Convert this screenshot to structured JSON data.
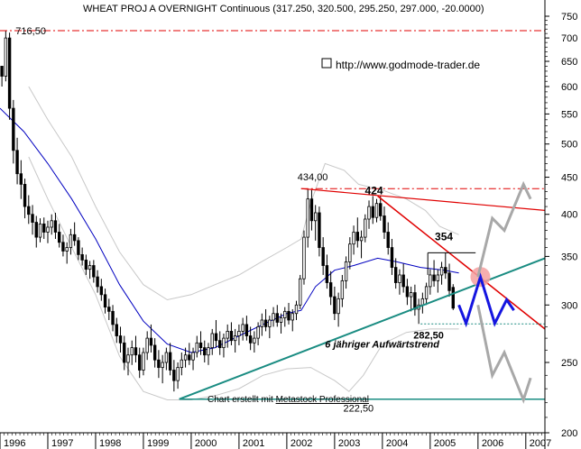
{
  "chart_data": {
    "type": "candlestick",
    "title": "WHEAT PROJ A OVERNIGHT Continuous (317.250, 320.500, 295.250, 297.000, -20.0000)",
    "watermark": "http://www.godmode-trader.de",
    "footer": {
      "prefix": "Chart erstellt mit ",
      "link": "Metastock Professional"
    },
    "y_axis": {
      "scale": "log",
      "range": [
        200,
        750
      ],
      "ticks": [
        750,
        700,
        650,
        600,
        550,
        500,
        450,
        400,
        350,
        300,
        250,
        200
      ],
      "side": "right"
    },
    "x_axis": {
      "range": [
        1996,
        2007.4
      ],
      "ticks": [
        "1996",
        "1997",
        "1998",
        "1999",
        "2000",
        "2001",
        "2002",
        "2003",
        "2004",
        "2005",
        "2006",
        "2007"
      ]
    },
    "annotations": [
      {
        "text": "716,50",
        "x": 1996.1,
        "y": 716.5
      },
      {
        "text": "434,00",
        "x": 2002.3,
        "y": 434
      },
      {
        "text": "424",
        "x": 2003.9,
        "y": 424
      },
      {
        "text": "354",
        "x": 2005.4,
        "y": 354
      },
      {
        "text": "282,50",
        "x": 2004.8,
        "y": 282.5
      },
      {
        "text": "222,50",
        "x": 2003.5,
        "y": 222.5
      },
      {
        "text": "6 jähriger Aufwärtstrend",
        "x": 2002.8,
        "y": 262
      }
    ],
    "lines": [
      {
        "name": "uptrend",
        "color": "#1a8c82",
        "points": [
          [
            1999.75,
            222.5
          ],
          [
            2007.4,
            348
          ]
        ]
      },
      {
        "name": "downtrend-steep",
        "color": "#e00000",
        "points": [
          [
            2003.9,
            424
          ],
          [
            2007.4,
            278
          ]
        ]
      },
      {
        "name": "resistance-top",
        "color": "#e00000",
        "points": [
          [
            2002.3,
            434
          ],
          [
            2007.4,
            405
          ]
        ]
      },
      {
        "name": "high-dashdot-716",
        "color": "#e00000",
        "points": [
          [
            1996,
            716.5
          ],
          [
            2007.4,
            716.5
          ]
        ]
      },
      {
        "name": "high-dashdot-434",
        "color": "#e00000",
        "points": [
          [
            2002.3,
            434
          ],
          [
            2007.4,
            434
          ]
        ]
      },
      {
        "name": "support-222",
        "color": "#1a8c82",
        "points": [
          [
            1999.75,
            222.5
          ],
          [
            2007.4,
            222.5
          ]
        ]
      },
      {
        "name": "dotted-282",
        "color": "#1a8c82",
        "points": [
          [
            2004.8,
            282.5
          ],
          [
            2007.4,
            282.5
          ]
        ]
      },
      {
        "name": "bracket-354",
        "color": "#000000",
        "points": [
          [
            2004.95,
            354
          ],
          [
            2005.95,
            354
          ]
        ]
      }
    ],
    "projections": [
      {
        "name": "projection-blue",
        "color": "#1515e0",
        "points": [
          [
            2005.6,
            300
          ],
          [
            2005.75,
            283
          ],
          [
            2006.05,
            328
          ],
          [
            2006.35,
            283
          ],
          [
            2006.6,
            305
          ],
          [
            2006.75,
            295
          ]
        ]
      },
      {
        "name": "projection-gray-up",
        "color": "#a8a8a8",
        "points": [
          [
            2006.0,
            328
          ],
          [
            2006.3,
            395
          ],
          [
            2006.55,
            380
          ],
          [
            2006.95,
            440
          ],
          [
            2007.1,
            420
          ]
        ]
      },
      {
        "name": "projection-gray-down",
        "color": "#a8a8a8",
        "points": [
          [
            2006.0,
            300
          ],
          [
            2006.3,
            240
          ],
          [
            2006.55,
            258
          ],
          [
            2006.95,
            222
          ],
          [
            2007.1,
            238
          ]
        ]
      }
    ],
    "highlight": {
      "name": "crossing-circle",
      "x": 2006.05,
      "y": 328,
      "color": "#f4a0a0"
    },
    "ma": {
      "name": "moving-average",
      "color": "#0000c0",
      "points": [
        [
          1996,
          560
        ],
        [
          1996.5,
          520
        ],
        [
          1997,
          470
        ],
        [
          1997.5,
          420
        ],
        [
          1998,
          370
        ],
        [
          1998.5,
          320
        ],
        [
          1999,
          285
        ],
        [
          1999.5,
          265
        ],
        [
          2000,
          258
        ],
        [
          2000.5,
          262
        ],
        [
          2001,
          272
        ],
        [
          2001.5,
          282
        ],
        [
          2002,
          292
        ],
        [
          2002.3,
          295
        ],
        [
          2002.6,
          318
        ],
        [
          2003,
          335
        ],
        [
          2003.4,
          340
        ],
        [
          2003.9,
          348
        ],
        [
          2004.3,
          344
        ],
        [
          2004.8,
          338
        ],
        [
          2005.3,
          335
        ],
        [
          2005.6,
          332
        ]
      ]
    },
    "band_upper": {
      "name": "band-upper",
      "color": "#c8c8c8",
      "points": [
        [
          1996.6,
          600
        ],
        [
          1997,
          540
        ],
        [
          1997.5,
          480
        ],
        [
          1998,
          410
        ],
        [
          1998.5,
          355
        ],
        [
          1999,
          320
        ],
        [
          1999.5,
          305
        ],
        [
          2000,
          310
        ],
        [
          2000.5,
          320
        ],
        [
          2001,
          330
        ],
        [
          2001.5,
          345
        ],
        [
          2002,
          360
        ],
        [
          2002.3,
          370
        ],
        [
          2002.5,
          415
        ],
        [
          2002.8,
          470
        ],
        [
          2003.2,
          460
        ],
        [
          2003.5,
          440
        ],
        [
          2004,
          432
        ],
        [
          2004.5,
          420
        ],
        [
          2004.9,
          405
        ],
        [
          2005.2,
          385
        ],
        [
          2005.6,
          375
        ]
      ]
    },
    "band_lower": {
      "name": "band-lower",
      "color": "#c8c8c8",
      "points": [
        [
          1996.6,
          480
        ],
        [
          1997,
          420
        ],
        [
          1997.5,
          360
        ],
        [
          1998,
          310
        ],
        [
          1998.5,
          255
        ],
        [
          1999,
          228
        ],
        [
          1999.5,
          222
        ],
        [
          2000,
          222
        ],
        [
          2000.5,
          225
        ],
        [
          2001,
          230
        ],
        [
          2001.5,
          240
        ],
        [
          2002,
          245
        ],
        [
          2002.5,
          246
        ],
        [
          2003,
          236
        ],
        [
          2003.3,
          228
        ],
        [
          2003.6,
          240
        ],
        [
          2004,
          265
        ],
        [
          2004.5,
          275
        ],
        [
          2005,
          278
        ],
        [
          2005.6,
          278
        ]
      ]
    },
    "candles": [
      [
        1996.04,
        640,
        640,
        600,
        620
      ],
      [
        1996.12,
        620,
        716.5,
        610,
        700
      ],
      [
        1996.2,
        700,
        712,
        540,
        560
      ],
      [
        1996.28,
        560,
        575,
        470,
        490
      ],
      [
        1996.36,
        490,
        510,
        440,
        455
      ],
      [
        1996.44,
        455,
        475,
        420,
        440
      ],
      [
        1996.52,
        440,
        448,
        395,
        410
      ],
      [
        1996.6,
        410,
        425,
        388,
        400
      ],
      [
        1996.68,
        400,
        412,
        375,
        390
      ],
      [
        1996.76,
        390,
        398,
        360,
        372
      ],
      [
        1996.84,
        372,
        395,
        366,
        388
      ],
      [
        1996.92,
        388,
        396,
        370,
        378
      ],
      [
        1997.0,
        378,
        392,
        365,
        384
      ],
      [
        1997.08,
        384,
        400,
        375,
        392
      ],
      [
        1997.16,
        392,
        402,
        370,
        378
      ],
      [
        1997.24,
        378,
        388,
        360,
        366
      ],
      [
        1997.32,
        366,
        375,
        350,
        356
      ],
      [
        1997.4,
        356,
        366,
        342,
        360
      ],
      [
        1997.48,
        360,
        382,
        352,
        375
      ],
      [
        1997.56,
        375,
        390,
        362,
        368
      ],
      [
        1997.64,
        368,
        372,
        346,
        352
      ],
      [
        1997.72,
        352,
        360,
        340,
        346
      ],
      [
        1997.8,
        346,
        352,
        330,
        336
      ],
      [
        1997.88,
        336,
        345,
        326,
        340
      ],
      [
        1997.96,
        340,
        346,
        322,
        328
      ],
      [
        1998.04,
        328,
        335,
        312,
        318
      ],
      [
        1998.12,
        318,
        326,
        304,
        310
      ],
      [
        1998.2,
        310,
        316,
        292,
        298
      ],
      [
        1998.28,
        298,
        306,
        286,
        294
      ],
      [
        1998.36,
        294,
        300,
        276,
        282
      ],
      [
        1998.44,
        282,
        288,
        266,
        272
      ],
      [
        1998.52,
        272,
        280,
        258,
        266
      ],
      [
        1998.6,
        266,
        272,
        244,
        250
      ],
      [
        1998.68,
        250,
        262,
        240,
        256
      ],
      [
        1998.76,
        256,
        268,
        248,
        262
      ],
      [
        1998.84,
        262,
        272,
        250,
        256
      ],
      [
        1998.92,
        256,
        262,
        238,
        244
      ],
      [
        1999.0,
        244,
        262,
        240,
        258
      ],
      [
        1999.08,
        258,
        276,
        252,
        270
      ],
      [
        1999.16,
        270,
        282,
        258,
        264
      ],
      [
        1999.24,
        264,
        270,
        246,
        252
      ],
      [
        1999.32,
        252,
        260,
        238,
        246
      ],
      [
        1999.4,
        246,
        256,
        234,
        250
      ],
      [
        1999.48,
        250,
        262,
        244,
        258
      ],
      [
        1999.56,
        258,
        266,
        240,
        244
      ],
      [
        1999.64,
        244,
        252,
        228,
        236
      ],
      [
        1999.72,
        236,
        250,
        230,
        246
      ],
      [
        1999.8,
        246,
        258,
        240,
        252
      ],
      [
        1999.88,
        252,
        262,
        246,
        256
      ],
      [
        1999.96,
        256,
        266,
        248,
        252
      ],
      [
        2000.04,
        252,
        262,
        244,
        258
      ],
      [
        2000.12,
        258,
        272,
        254,
        266
      ],
      [
        2000.2,
        266,
        276,
        256,
        262
      ],
      [
        2000.28,
        262,
        268,
        250,
        256
      ],
      [
        2000.36,
        256,
        266,
        248,
        262
      ],
      [
        2000.44,
        262,
        278,
        256,
        274
      ],
      [
        2000.52,
        274,
        286,
        262,
        268
      ],
      [
        2000.6,
        268,
        276,
        256,
        262
      ],
      [
        2000.68,
        262,
        274,
        254,
        270
      ],
      [
        2000.76,
        270,
        282,
        262,
        276
      ],
      [
        2000.84,
        276,
        284,
        264,
        268
      ],
      [
        2000.92,
        268,
        278,
        258,
        272
      ],
      [
        2001.0,
        272,
        282,
        264,
        276
      ],
      [
        2001.08,
        276,
        288,
        268,
        282
      ],
      [
        2001.16,
        282,
        290,
        268,
        272
      ],
      [
        2001.24,
        272,
        280,
        260,
        266
      ],
      [
        2001.32,
        266,
        276,
        258,
        270
      ],
      [
        2001.4,
        270,
        284,
        264,
        280
      ],
      [
        2001.48,
        280,
        292,
        272,
        286
      ],
      [
        2001.56,
        286,
        296,
        276,
        280
      ],
      [
        2001.64,
        280,
        290,
        270,
        286
      ],
      [
        2001.72,
        286,
        298,
        280,
        292
      ],
      [
        2001.8,
        292,
        300,
        280,
        284
      ],
      [
        2001.88,
        284,
        292,
        274,
        288
      ],
      [
        2001.96,
        288,
        298,
        280,
        294
      ],
      [
        2002.04,
        294,
        302,
        282,
        286
      ],
      [
        2002.12,
        286,
        296,
        276,
        292
      ],
      [
        2002.2,
        292,
        304,
        286,
        300
      ],
      [
        2002.28,
        300,
        330,
        296,
        326
      ],
      [
        2002.36,
        326,
        380,
        320,
        372
      ],
      [
        2002.44,
        372,
        434,
        360,
        420
      ],
      [
        2002.52,
        420,
        432,
        380,
        392
      ],
      [
        2002.6,
        392,
        412,
        368,
        402
      ],
      [
        2002.68,
        402,
        410,
        350,
        360
      ],
      [
        2002.76,
        360,
        372,
        330,
        340
      ],
      [
        2002.84,
        340,
        352,
        316,
        322
      ],
      [
        2002.92,
        322,
        334,
        300,
        308
      ],
      [
        2003.0,
        308,
        318,
        286,
        292
      ],
      [
        2003.08,
        292,
        312,
        280,
        306
      ],
      [
        2003.16,
        306,
        330,
        298,
        324
      ],
      [
        2003.24,
        324,
        350,
        316,
        344
      ],
      [
        2003.32,
        344,
        372,
        336,
        364
      ],
      [
        2003.4,
        364,
        386,
        352,
        378
      ],
      [
        2003.48,
        378,
        396,
        360,
        368
      ],
      [
        2003.56,
        368,
        380,
        348,
        372
      ],
      [
        2003.64,
        372,
        400,
        366,
        394
      ],
      [
        2003.72,
        394,
        418,
        382,
        410
      ],
      [
        2003.8,
        410,
        424,
        388,
        396
      ],
      [
        2003.88,
        396,
        420,
        390,
        414
      ],
      [
        2003.96,
        414,
        424,
        392,
        398
      ],
      [
        2004.04,
        398,
        410,
        370,
        378
      ],
      [
        2004.12,
        378,
        390,
        352,
        360
      ],
      [
        2004.2,
        360,
        370,
        330,
        338
      ],
      [
        2004.28,
        338,
        348,
        316,
        322
      ],
      [
        2004.36,
        322,
        336,
        310,
        330
      ],
      [
        2004.44,
        330,
        342,
        312,
        318
      ],
      [
        2004.52,
        318,
        326,
        300,
        308
      ],
      [
        2004.6,
        308,
        318,
        294,
        312
      ],
      [
        2004.68,
        312,
        320,
        290,
        296
      ],
      [
        2004.76,
        296,
        306,
        282.5,
        300
      ],
      [
        2004.84,
        300,
        312,
        292,
        306
      ],
      [
        2004.92,
        306,
        322,
        300,
        318
      ],
      [
        2005.0,
        318,
        336,
        310,
        330
      ],
      [
        2005.08,
        330,
        346,
        318,
        324
      ],
      [
        2005.16,
        324,
        336,
        312,
        330
      ],
      [
        2005.24,
        330,
        344,
        320,
        338
      ],
      [
        2005.32,
        338,
        354,
        326,
        332
      ],
      [
        2005.4,
        332,
        342,
        308,
        314
      ],
      [
        2005.48,
        317.25,
        320.5,
        295.25,
        297
      ]
    ]
  }
}
